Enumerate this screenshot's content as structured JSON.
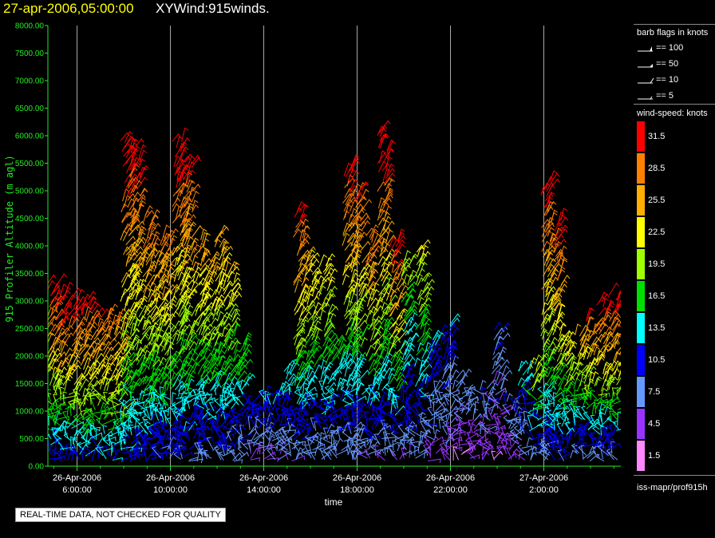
{
  "title": {
    "datetime": "27-apr-2006,05:00:00",
    "product": "XYWind:915winds."
  },
  "quality_notice": "REAL-TIME DATA, NOT CHECKED FOR QUALITY",
  "legend": {
    "barb_header": "barb flags in knots",
    "barbs": [
      {
        "kind": "pennant",
        "label": "== 100"
      },
      {
        "kind": "flag",
        "label": "== 50"
      },
      {
        "kind": "full",
        "label": "== 10"
      },
      {
        "kind": "half",
        "label": "== 5"
      }
    ],
    "speed_header": "wind-speed: knots",
    "speed_scale": [
      {
        "label": "31.5",
        "color": "#ff0000"
      },
      {
        "label": "28.5",
        "color": "#ff8000"
      },
      {
        "label": "25.5",
        "color": "#ffb000"
      },
      {
        "label": "22.5",
        "color": "#ffff00"
      },
      {
        "label": "19.5",
        "color": "#a0ff00"
      },
      {
        "label": "16.5",
        "color": "#00e000"
      },
      {
        "label": "13.5",
        "color": "#00ffff"
      },
      {
        "label": "10.5",
        "color": "#0000ff"
      },
      {
        "label": "7.5",
        "color": "#6699ff"
      },
      {
        "label": "4.5",
        "color": "#9933ff"
      },
      {
        "label": "1.5",
        "color": "#ff88ff"
      }
    ],
    "source": "iss-mapr/prof915h"
  },
  "chart_data": {
    "type": "scatter",
    "subtype": "wind-barb time-height plot",
    "title": "27-apr-2006,05:00:00 XYWind:915winds.",
    "xlabel": "time",
    "ylabel": "915 Profiler Altitude (m agl)",
    "ylim": [
      0,
      8000
    ],
    "yticks": [
      "0.00",
      "500.00",
      "1000.00",
      "1500.00",
      "2000.00",
      "2500.00",
      "3000.00",
      "3500.00",
      "4000.00",
      "4500.00",
      "5000.00",
      "5500.00",
      "6000.00",
      "6500.00",
      "7000.00",
      "7500.00",
      "8000.00"
    ],
    "xlim_hours_from_26apr_0000": [
      4.75,
      29.3
    ],
    "xticks": [
      {
        "hour": 6,
        "date": "26-Apr-2006",
        "time": "6:00:00"
      },
      {
        "hour": 10,
        "date": "26-Apr-2006",
        "time": "10:00:00"
      },
      {
        "hour": 14,
        "date": "26-Apr-2006",
        "time": "14:00:00"
      },
      {
        "hour": 18,
        "date": "26-Apr-2006",
        "time": "18:00:00"
      },
      {
        "hour": 22,
        "date": "26-Apr-2006",
        "time": "22:00:00"
      },
      {
        "hour": 26,
        "date": "27-Apr-2006",
        "time": "2:00:00"
      }
    ],
    "grid": "vertical lines at x ticks",
    "color_scale": "wind speed (knots)",
    "wind_columns": [
      {
        "hour": 4.9,
        "top": 3300,
        "low_speed": 8,
        "high_speed": 33
      },
      {
        "hour": 5.3,
        "top": 3100,
        "low_speed": 8,
        "high_speed": 34
      },
      {
        "hour": 5.8,
        "top": 3000,
        "low_speed": 9,
        "high_speed": 33
      },
      {
        "hour": 6.3,
        "top": 3000,
        "low_speed": 10,
        "high_speed": 32
      },
      {
        "hour": 6.8,
        "top": 2900,
        "low_speed": 10,
        "high_speed": 31
      },
      {
        "hour": 7.3,
        "top": 2800,
        "low_speed": 11,
        "high_speed": 30
      },
      {
        "hour": 7.8,
        "top": 2700,
        "low_speed": 10,
        "high_speed": 29
      },
      {
        "hour": 8.1,
        "top": 5900,
        "low_speed": 10,
        "high_speed": 33
      },
      {
        "hour": 8.5,
        "top": 5800,
        "low_speed": 9,
        "high_speed": 33
      },
      {
        "hour": 9.0,
        "top": 4600,
        "low_speed": 9,
        "high_speed": 30
      },
      {
        "hour": 9.4,
        "top": 4000,
        "low_speed": 8,
        "high_speed": 28
      },
      {
        "hour": 9.8,
        "top": 4200,
        "low_speed": 8,
        "high_speed": 29
      },
      {
        "hour": 10.3,
        "top": 5900,
        "low_speed": 8,
        "high_speed": 33
      },
      {
        "hour": 10.7,
        "top": 5600,
        "low_speed": 8,
        "high_speed": 32
      },
      {
        "hour": 11.2,
        "top": 4100,
        "low_speed": 7,
        "high_speed": 27
      },
      {
        "hour": 11.6,
        "top": 3800,
        "low_speed": 7,
        "high_speed": 26
      },
      {
        "hour": 12.1,
        "top": 4200,
        "low_speed": 7,
        "high_speed": 27
      },
      {
        "hour": 12.5,
        "top": 3600,
        "low_speed": 7,
        "high_speed": 24
      },
      {
        "hour": 13.0,
        "top": 2200,
        "low_speed": 6,
        "high_speed": 18
      },
      {
        "hour": 13.5,
        "top": 1200,
        "low_speed": 5,
        "high_speed": 12
      },
      {
        "hour": 14.0,
        "top": 1300,
        "low_speed": 5,
        "high_speed": 12
      },
      {
        "hour": 14.5,
        "top": 1300,
        "low_speed": 5,
        "high_speed": 12
      },
      {
        "hour": 15.0,
        "top": 1800,
        "low_speed": 5,
        "high_speed": 15
      },
      {
        "hour": 15.5,
        "top": 4700,
        "low_speed": 6,
        "high_speed": 31
      },
      {
        "hour": 16.0,
        "top": 3800,
        "low_speed": 6,
        "high_speed": 25
      },
      {
        "hour": 16.6,
        "top": 3700,
        "low_speed": 6,
        "high_speed": 24
      },
      {
        "hour": 17.1,
        "top": 2200,
        "low_speed": 5,
        "high_speed": 16
      },
      {
        "hour": 17.6,
        "top": 5500,
        "low_speed": 5,
        "high_speed": 32
      },
      {
        "hour": 18.0,
        "top": 5000,
        "low_speed": 5,
        "high_speed": 31
      },
      {
        "hour": 18.6,
        "top": 4200,
        "low_speed": 5,
        "high_speed": 30
      },
      {
        "hour": 19.1,
        "top": 6100,
        "low_speed": 5,
        "high_speed": 34
      },
      {
        "hour": 19.6,
        "top": 4100,
        "low_speed": 5,
        "high_speed": 32
      },
      {
        "hour": 20.1,
        "top": 3800,
        "low_speed": 5,
        "high_speed": 20
      },
      {
        "hour": 20.7,
        "top": 3900,
        "low_speed": 5,
        "high_speed": 22
      },
      {
        "hour": 21.2,
        "top": 2300,
        "low_speed": 4,
        "high_speed": 12
      },
      {
        "hour": 21.8,
        "top": 2600,
        "low_speed": 4,
        "high_speed": 12
      },
      {
        "hour": 22.3,
        "top": 1600,
        "low_speed": 3,
        "high_speed": 8
      },
      {
        "hour": 22.9,
        "top": 1300,
        "low_speed": 3,
        "high_speed": 8
      },
      {
        "hour": 23.5,
        "top": 1400,
        "low_speed": 3,
        "high_speed": 9
      },
      {
        "hour": 24.0,
        "top": 2500,
        "low_speed": 3,
        "high_speed": 9
      },
      {
        "hour": 24.6,
        "top": 1200,
        "low_speed": 3,
        "high_speed": 9
      },
      {
        "hour": 25.1,
        "top": 1800,
        "low_speed": 5,
        "high_speed": 13
      },
      {
        "hour": 25.6,
        "top": 1900,
        "low_speed": 7,
        "high_speed": 22
      },
      {
        "hour": 26.1,
        "top": 5200,
        "low_speed": 7,
        "high_speed": 33
      },
      {
        "hour": 26.5,
        "top": 4500,
        "low_speed": 8,
        "high_speed": 32
      },
      {
        "hour": 27.0,
        "top": 2300,
        "low_speed": 7,
        "high_speed": 24
      },
      {
        "hour": 27.5,
        "top": 2400,
        "low_speed": 6,
        "high_speed": 26
      },
      {
        "hour": 28.0,
        "top": 2700,
        "low_speed": 6,
        "high_speed": 30
      },
      {
        "hour": 28.5,
        "top": 3000,
        "low_speed": 6,
        "high_speed": 33
      },
      {
        "hour": 29.0,
        "top": 3100,
        "low_speed": 6,
        "high_speed": 34
      }
    ]
  }
}
